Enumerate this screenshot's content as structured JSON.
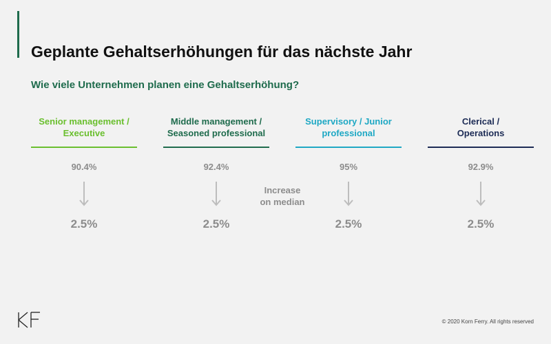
{
  "slide": {
    "title": "Geplante Gehaltserhöhungen für das nächste Jahr",
    "subtitle": "Wie viele Unternehmen planen eine Gehaltserhöhung?",
    "middle_label_line1": "Increase",
    "middle_label_line2": "on median",
    "copyright": "© 2020 Korn Ferry. All rights reserved"
  },
  "columns": [
    {
      "header_line1": "Senior management /",
      "header_line2": "Executive",
      "color": "#6abf2e",
      "percent": "90.4%",
      "increase": "2.5%"
    },
    {
      "header_line1": "Middle management /",
      "header_line2": "Seasoned professional",
      "color": "#1e6b4c",
      "percent": "92.4%",
      "increase": "2.5%"
    },
    {
      "header_line1": "Supervisory / Junior",
      "header_line2": "professional",
      "color": "#1ea8c4",
      "percent": "95%",
      "increase": "2.5%"
    },
    {
      "header_line1": "Clerical /",
      "header_line2": "Operations",
      "color": "#1c2b55",
      "percent": "92.9%",
      "increase": "2.5%"
    }
  ],
  "icons": {
    "arrow": "arrow-down-icon",
    "logo": "korn-ferry-logo"
  },
  "colors": {
    "accent": "#1e6b4c",
    "muted_text": "#8c8c8c",
    "background": "#f2f2f2"
  }
}
